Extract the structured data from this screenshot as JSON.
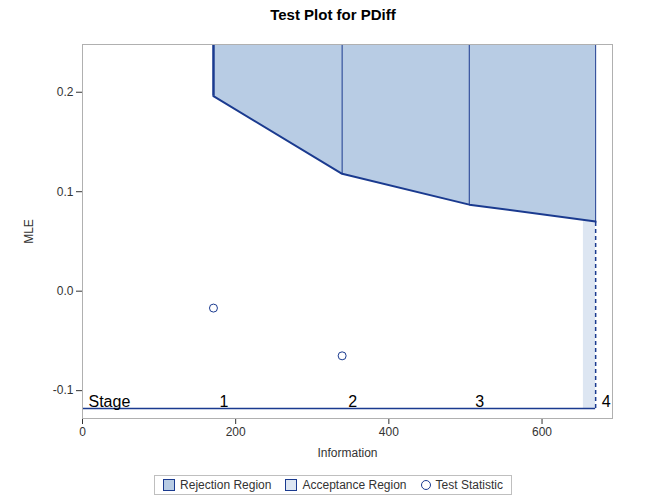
{
  "chart_data": {
    "type": "sequential_test",
    "title": "Test Plot for PDiff",
    "x_label": "Information",
    "y_label": "MLE",
    "xlim": [
      0,
      692
    ],
    "ylim": [
      -0.128,
      0.248
    ],
    "xticks": [
      0,
      200,
      400,
      600
    ],
    "yticks": [
      -0.1,
      {
        "value": 0,
        "label": "0.0"
      },
      0.1,
      0.2
    ],
    "stages": {
      "label": "Stage",
      "names": [
        "1",
        "2",
        "3",
        "4"
      ],
      "information": [
        171,
        339,
        505,
        670
      ],
      "rejection_boundary": [
        0.196,
        0.118,
        0.087,
        0.07
      ]
    },
    "acceptance_region": {
      "information": [
        654,
        670
      ],
      "mle": [
        -0.118,
        0.07
      ]
    },
    "test_statistic": {
      "information": [
        171,
        339
      ],
      "values": [
        -0.017,
        -0.065
      ]
    },
    "series": [
      {
        "name": "Rejection Region",
        "color": "#b8cce4"
      },
      {
        "name": "Acceptance Region",
        "color": "#dde6f2"
      },
      {
        "name": "Test Statistic",
        "color": "#1a3a8f",
        "marker": "circle"
      }
    ]
  }
}
